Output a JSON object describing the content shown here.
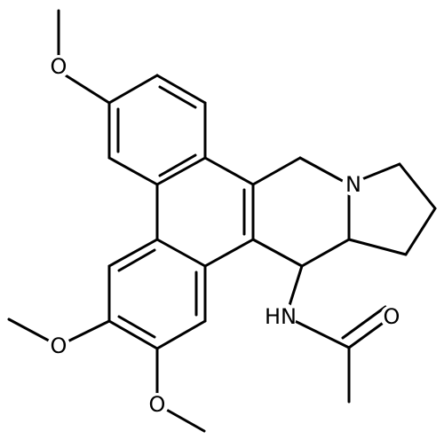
{
  "atoms": [
    {
      "label": "O"
    },
    {
      "label": "N"
    },
    {
      "label": "O"
    },
    {
      "label": "O"
    },
    {
      "label": "HN"
    },
    {
      "label": "O"
    }
  ]
}
